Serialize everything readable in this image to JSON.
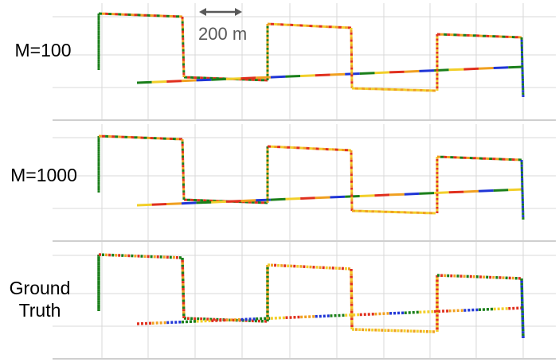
{
  "panels": [
    {
      "label": "M=100",
      "label_lines": [
        "M=100"
      ]
    },
    {
      "label": "M=1000",
      "label_lines": [
        "M=1000"
      ]
    },
    {
      "label": "Ground Truth",
      "label_lines": [
        "Ground",
        "Truth"
      ]
    }
  ],
  "scale_bar": {
    "text": "200 m"
  },
  "colors": {
    "grid": "#d9d9d9",
    "axis": "#bfbfbf",
    "scale": "#595959",
    "green": "#1a7f1a",
    "orange": "#f0a020",
    "yellow": "#f2cf2a",
    "red": "#e0301e",
    "blue": "#1f35d6",
    "pink": "#f06ab0"
  },
  "trajectory_segments": [
    {
      "name": "seg-left-vertical",
      "colors": [
        "green"
      ]
    },
    {
      "name": "seg-top-left",
      "colors": [
        "green",
        "orange",
        "red"
      ]
    },
    {
      "name": "seg-drop-1",
      "colors": [
        "red",
        "orange",
        "green"
      ]
    },
    {
      "name": "seg-diagonal",
      "colors": [
        "green",
        "yellow",
        "red",
        "orange",
        "blue"
      ]
    },
    {
      "name": "seg-rise-2",
      "colors": [
        "green",
        "orange"
      ]
    },
    {
      "name": "seg-top-mid",
      "colors": [
        "orange",
        "red",
        "yellow"
      ]
    },
    {
      "name": "seg-drop-2",
      "colors": [
        "yellow",
        "orange",
        "red"
      ]
    },
    {
      "name": "seg-bottom-mid",
      "colors": [
        "yellow",
        "orange"
      ]
    },
    {
      "name": "seg-rise-3",
      "colors": [
        "yellow",
        "red"
      ]
    },
    {
      "name": "seg-top-right",
      "colors": [
        "red",
        "orange",
        "green"
      ]
    },
    {
      "name": "seg-right-vertical",
      "colors": [
        "green",
        "blue"
      ]
    }
  ]
}
